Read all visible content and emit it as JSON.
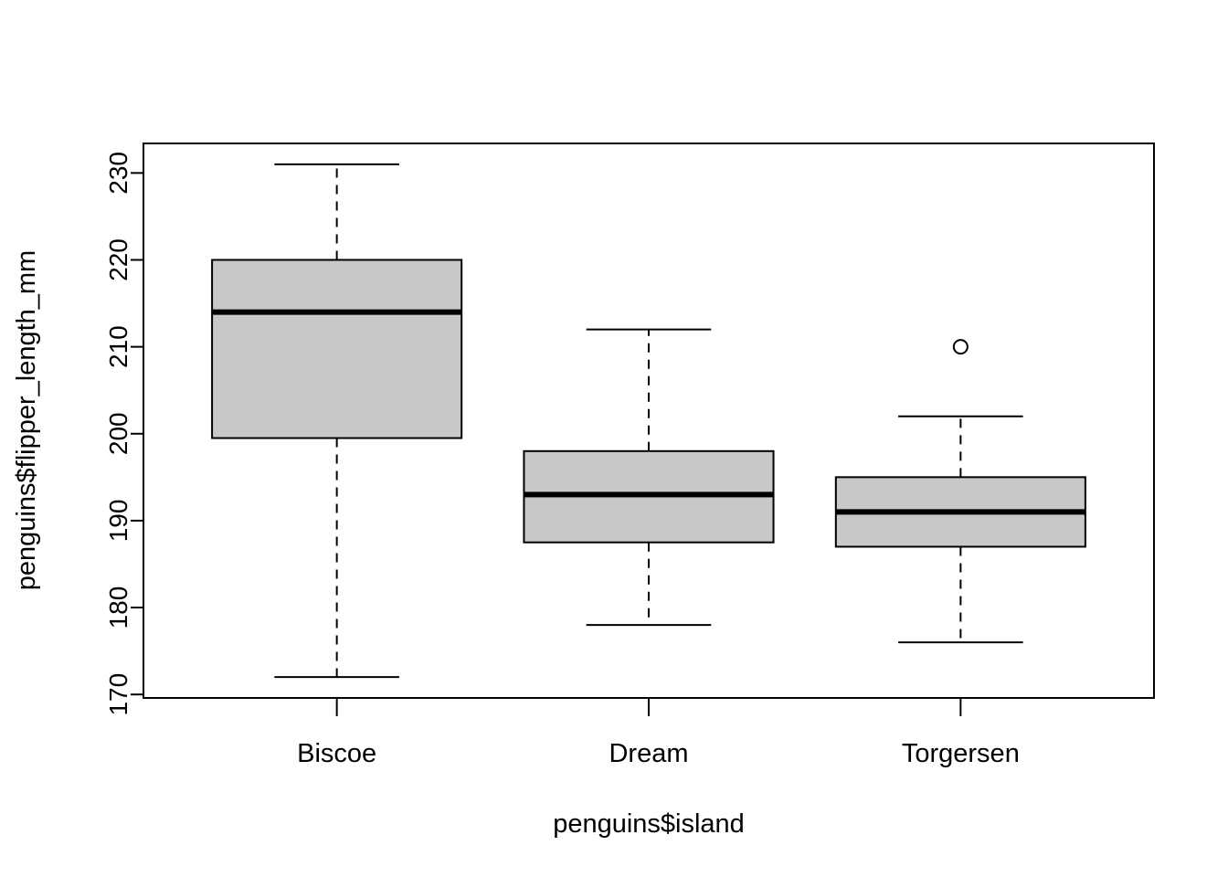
{
  "chart_data": {
    "type": "boxplot",
    "title": "",
    "xlabel": "penguins$island",
    "ylabel": "penguins$flipper_length_mm",
    "ylim": [
      169.6,
      233.4
    ],
    "yticks": [
      170,
      180,
      190,
      200,
      210,
      220,
      230
    ],
    "grid": false,
    "legend": "none",
    "box_fill": "#c8c8c8",
    "line_color": "#000000",
    "categories": [
      "Biscoe",
      "Dream",
      "Torgersen"
    ],
    "boxes": [
      {
        "category": "Biscoe",
        "whisker_low": 172,
        "q1": 199.5,
        "median": 214,
        "q3": 220,
        "whisker_high": 231,
        "outliers": []
      },
      {
        "category": "Dream",
        "whisker_low": 178,
        "q1": 187.5,
        "median": 193,
        "q3": 198,
        "whisker_high": 212,
        "outliers": []
      },
      {
        "category": "Torgersen",
        "whisker_low": 176,
        "q1": 187,
        "median": 191,
        "q3": 195,
        "whisker_high": 202,
        "outliers": [
          210
        ]
      }
    ]
  }
}
